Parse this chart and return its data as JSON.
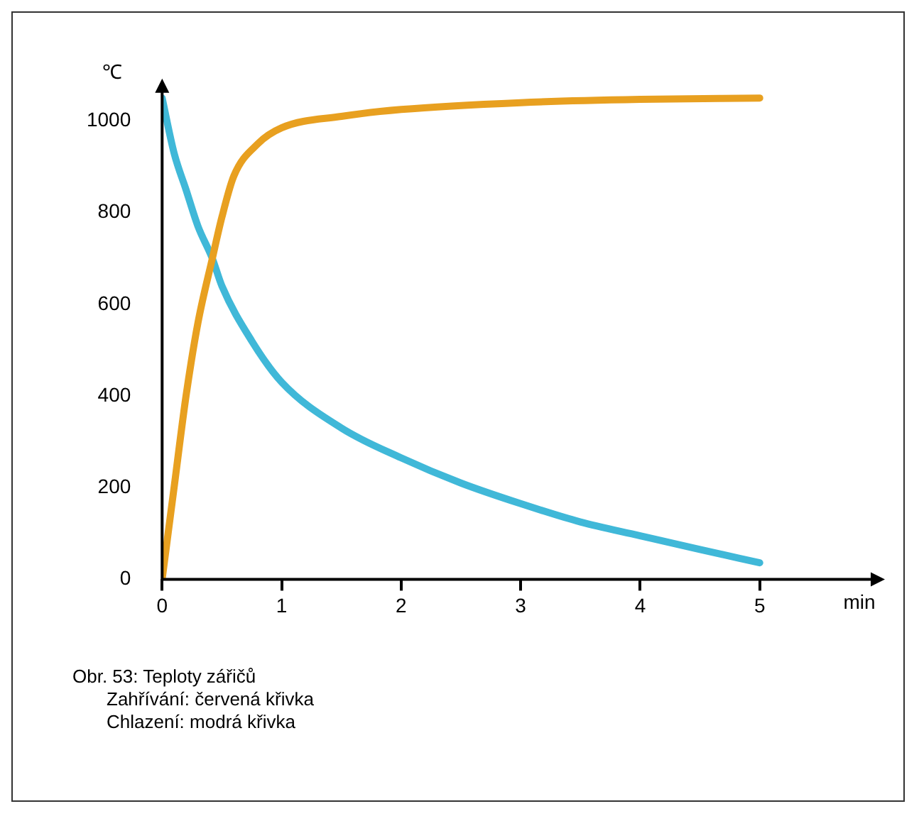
{
  "chart_data": {
    "type": "line",
    "ylabel": "℃",
    "xlabel": "min",
    "xlim": [
      0,
      6
    ],
    "xticks": [
      0,
      1,
      2,
      3,
      4,
      5
    ],
    "ylim": [
      0,
      1080
    ],
    "yticks": [
      0,
      200,
      400,
      600,
      800,
      1000
    ],
    "grid": false,
    "legend": false,
    "marker": "none",
    "line_style": "solid",
    "series": [
      {
        "color": "#e8a020",
        "x": [
          0,
          0.1,
          0.2,
          0.3,
          0.42,
          0.5,
          0.6,
          0.8,
          1,
          1.5,
          2,
          3,
          4,
          5
        ],
        "values": [
          0,
          200,
          400,
          560,
          700,
          790,
          880,
          950,
          985,
          1010,
          1025,
          1040,
          1047,
          1050
        ]
      },
      {
        "color": "#40b8d8",
        "x": [
          0,
          0.1,
          0.2,
          0.3,
          0.42,
          0.5,
          0.75,
          1,
          1.5,
          2,
          2.5,
          3,
          3.5,
          4,
          4.5,
          5
        ],
        "values": [
          1050,
          930,
          850,
          770,
          700,
          640,
          520,
          430,
          330,
          265,
          210,
          165,
          125,
          95,
          65,
          36
        ]
      }
    ],
    "annotations": [
      "Obr. 53: Teploty zářičů",
      "Zahřívání: červená křivka",
      "Chlazení: modrá křivka"
    ]
  }
}
